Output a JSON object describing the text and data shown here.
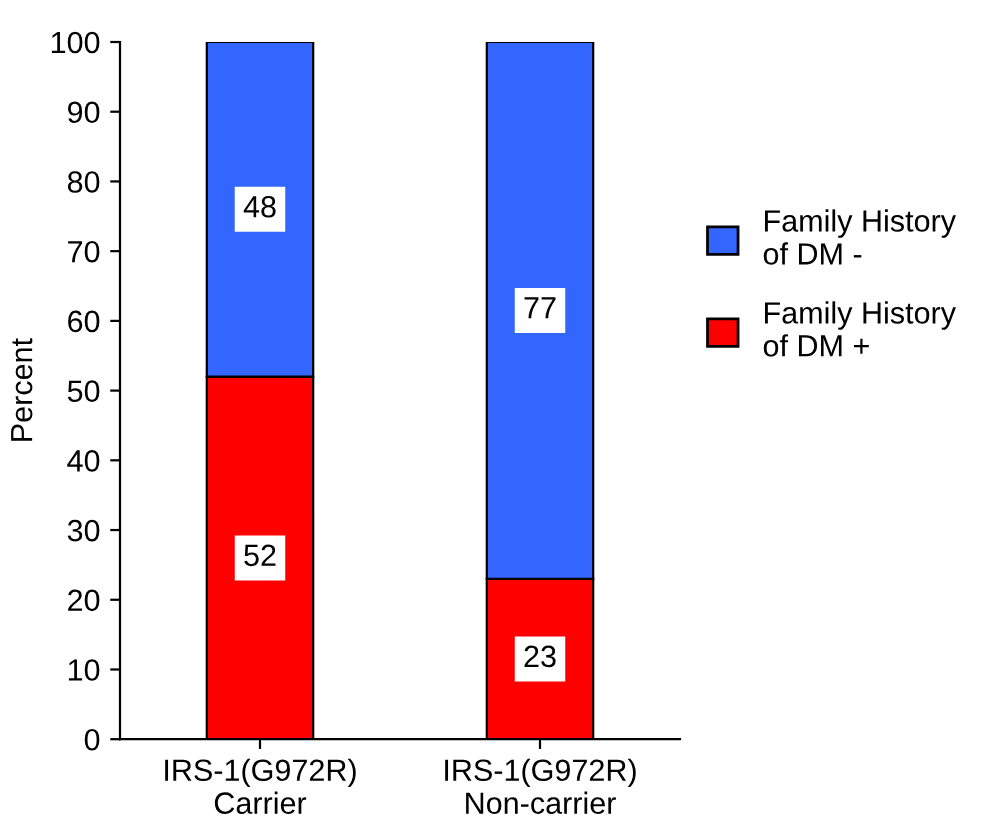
{
  "chart_data": {
    "type": "bar",
    "stacked": true,
    "ylabel": "Percent",
    "categories": [
      "IRS-1(G972R)\nCarrier",
      "IRS-1(G972R)\nNon-carrier"
    ],
    "series": [
      {
        "name": "Family History\nof DM +",
        "color": "#ff0000",
        "values": [
          52,
          23
        ]
      },
      {
        "name": "Family History\nof DM -",
        "color": "#3366ff",
        "values": [
          48,
          77
        ]
      }
    ],
    "ylim": [
      0,
      100
    ],
    "yticks": [
      0,
      10,
      20,
      30,
      40,
      50,
      60,
      70,
      80,
      90,
      100
    ],
    "data_labels": true,
    "grid": false,
    "legend": "right"
  }
}
